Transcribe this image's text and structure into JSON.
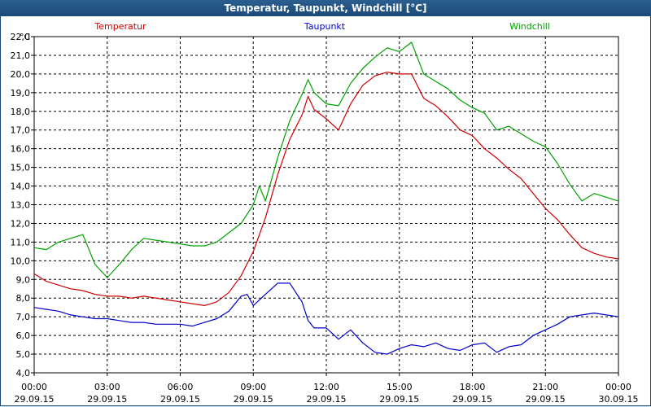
{
  "window": {
    "title": "Temperatur, Taupunkt, Windchill [°C]"
  },
  "chart_data": {
    "type": "line",
    "title": "Temperatur, Taupunkt, Windchill [°C]",
    "ylabel": "°C",
    "ylim": [
      4.0,
      22.0
    ],
    "y_ticks": [
      "4,0",
      "5,0",
      "6,0",
      "7,0",
      "8,0",
      "9,0",
      "10,0",
      "11,0",
      "12,0",
      "13,0",
      "14,0",
      "15,0",
      "16,0",
      "17,0",
      "18,0",
      "19,0",
      "20,0",
      "21,0",
      "22,0"
    ],
    "x_range_hours": [
      0,
      24
    ],
    "x_ticks": [
      {
        "time": "00:00",
        "date": "29.09.15"
      },
      {
        "time": "03:00",
        "date": "29.09.15"
      },
      {
        "time": "06:00",
        "date": "29.09.15"
      },
      {
        "time": "09:00",
        "date": "29.09.15"
      },
      {
        "time": "12:00",
        "date": "29.09.15"
      },
      {
        "time": "15:00",
        "date": "29.09.15"
      },
      {
        "time": "18:00",
        "date": "29.09.15"
      },
      {
        "time": "21:00",
        "date": "29.09.15"
      },
      {
        "time": "00:00",
        "date": "30.09.15"
      }
    ],
    "grid": true,
    "legend_position": "top",
    "series": [
      {
        "name": "Temperatur",
        "color": "#cc0000",
        "x": [
          0,
          0.5,
          1,
          1.5,
          2,
          2.5,
          3,
          3.5,
          4,
          4.5,
          5,
          5.5,
          6,
          6.5,
          7,
          7.5,
          8,
          8.5,
          9,
          9.5,
          10,
          10.5,
          11,
          11.25,
          11.5,
          12,
          12.5,
          13,
          13.5,
          14,
          14.5,
          15,
          15.5,
          16,
          16.5,
          17,
          17.5,
          18,
          18.5,
          19,
          19.5,
          20,
          20.5,
          21,
          21.5,
          22,
          22.5,
          23,
          23.5,
          24
        ],
        "values": [
          9.3,
          8.9,
          8.7,
          8.5,
          8.4,
          8.2,
          8.1,
          8.1,
          8.0,
          8.1,
          8.0,
          7.9,
          7.8,
          7.7,
          7.6,
          7.8,
          8.3,
          9.2,
          10.5,
          12.3,
          14.6,
          16.5,
          17.8,
          18.8,
          18.1,
          17.6,
          17.0,
          18.4,
          19.4,
          19.9,
          20.1,
          20.0,
          20.0,
          18.7,
          18.3,
          17.7,
          17.0,
          16.7,
          16.0,
          15.5,
          14.9,
          14.4,
          13.6,
          12.8,
          12.2,
          11.4,
          10.7,
          10.4,
          10.2,
          10.1
        ]
      },
      {
        "name": "Taupunkt",
        "color": "#0000cc",
        "x": [
          0,
          0.5,
          1,
          1.5,
          2,
          2.5,
          3,
          3.5,
          4,
          4.5,
          5,
          5.5,
          6,
          6.5,
          7,
          7.5,
          8,
          8.5,
          8.75,
          9,
          9.5,
          10,
          10.5,
          11,
          11.25,
          11.5,
          12,
          12.5,
          13,
          13.5,
          14,
          14.5,
          15,
          15.5,
          16,
          16.5,
          17,
          17.5,
          18,
          18.5,
          19,
          19.5,
          20,
          20.5,
          21,
          21.5,
          22,
          22.5,
          23,
          23.5,
          24
        ],
        "values": [
          7.5,
          7.4,
          7.3,
          7.1,
          7.0,
          6.9,
          6.9,
          6.8,
          6.7,
          6.7,
          6.6,
          6.6,
          6.6,
          6.5,
          6.7,
          6.9,
          7.3,
          8.1,
          8.2,
          7.6,
          8.2,
          8.8,
          8.8,
          7.8,
          6.8,
          6.4,
          6.4,
          5.8,
          6.3,
          5.6,
          5.1,
          5.0,
          5.3,
          5.5,
          5.4,
          5.6,
          5.3,
          5.2,
          5.5,
          5.6,
          5.1,
          5.4,
          5.5,
          6.0,
          6.3,
          6.6,
          7.0,
          7.1,
          7.2,
          7.1,
          7.0
        ]
      },
      {
        "name": "Windchill",
        "color": "#00a000",
        "x": [
          0,
          0.5,
          1,
          1.5,
          2,
          2.5,
          3,
          3.5,
          4,
          4.5,
          5,
          5.5,
          6,
          6.5,
          7,
          7.5,
          8,
          8.5,
          9,
          9.25,
          9.5,
          10,
          10.5,
          11,
          11.25,
          11.5,
          12,
          12.5,
          13,
          13.5,
          14,
          14.5,
          15,
          15.5,
          16,
          16.5,
          17,
          17.5,
          18,
          18.5,
          19,
          19.5,
          20,
          20.5,
          21,
          21.5,
          22,
          22.5,
          23,
          23.5,
          24
        ],
        "values": [
          10.7,
          10.6,
          11.0,
          11.2,
          11.4,
          9.8,
          9.1,
          9.8,
          10.6,
          11.2,
          11.1,
          11.0,
          10.9,
          10.8,
          10.8,
          11.0,
          11.5,
          12.0,
          13.0,
          14.0,
          13.2,
          15.5,
          17.5,
          18.9,
          19.7,
          19.0,
          18.4,
          18.3,
          19.5,
          20.3,
          20.9,
          21.4,
          21.2,
          21.7,
          20.0,
          19.6,
          19.2,
          18.6,
          18.2,
          17.9,
          17.0,
          17.2,
          16.8,
          16.4,
          16.1,
          15.2,
          14.1,
          13.2,
          13.6,
          13.4,
          13.2
        ]
      }
    ]
  }
}
